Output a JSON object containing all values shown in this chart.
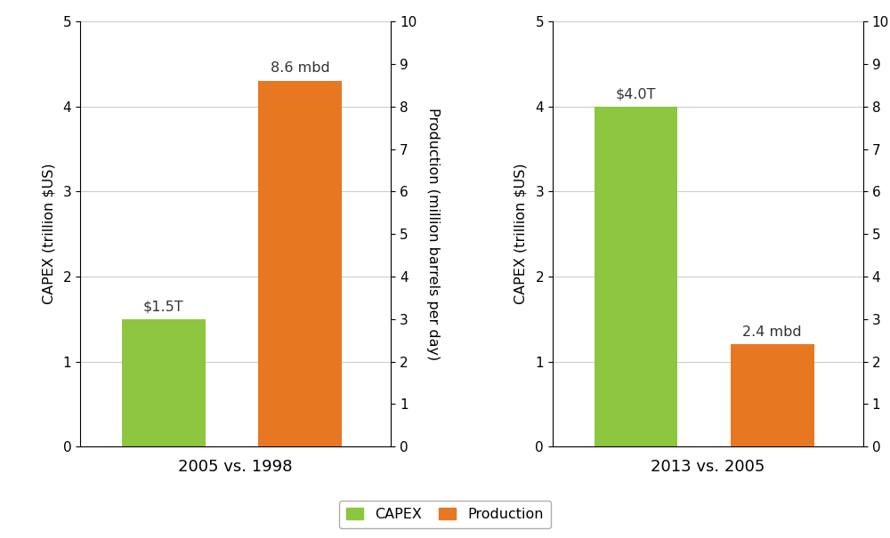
{
  "panel1": {
    "title": "2005 vs. 1998",
    "capex_value": 1.5,
    "capex_label": "$1.5T",
    "production_value": 8.6,
    "production_label": "8.6 mbd",
    "ylim_left": [
      0,
      5
    ],
    "ylim_right": [
      0,
      10
    ],
    "yticks_left": [
      0,
      1,
      2,
      3,
      4,
      5
    ],
    "yticks_right": [
      0,
      1,
      2,
      3,
      4,
      5,
      6,
      7,
      8,
      9,
      10
    ]
  },
  "panel2": {
    "title": "2013 vs. 2005",
    "capex_value": 4.0,
    "capex_label": "$4.0T",
    "production_value": 2.4,
    "production_label": "2.4 mbd",
    "ylim_left": [
      0,
      5
    ],
    "ylim_right": [
      0,
      10
    ],
    "yticks_left": [
      0,
      1,
      2,
      3,
      4,
      5
    ],
    "yticks_right": [
      0,
      1,
      2,
      3,
      4,
      5,
      6,
      7,
      8,
      9,
      10
    ]
  },
  "capex_color": "#8dc63f",
  "production_color": "#e87722",
  "ylabel_left": "CAPEX (trillion $US)",
  "ylabel_right": "Production (million barrels per day)",
  "legend_capex": "CAPEX",
  "legend_production": "Production",
  "bar_width": 0.55,
  "background_color": "#ffffff",
  "grid_color": "#cccccc",
  "title_fontsize": 13,
  "label_fontsize": 11.5,
  "tick_fontsize": 11,
  "annotation_fontsize": 11.5
}
